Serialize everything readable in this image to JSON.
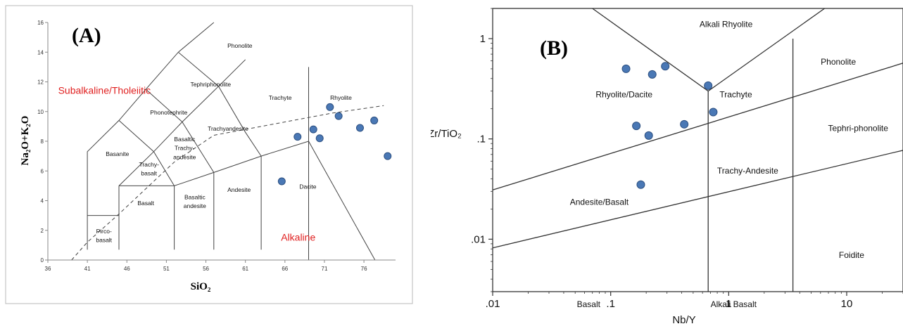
{
  "chart_data": [
    {
      "type": "scatter",
      "panel_label": "(A)",
      "xlabel": "SiO₂",
      "ylabel": "Na₂O+K₂O",
      "xlim": [
        36,
        80
      ],
      "ylim": [
        0,
        16
      ],
      "xticks": [
        "36",
        "41",
        "46",
        "51",
        "56",
        "61",
        "66",
        "71",
        "76"
      ],
      "yticks": [
        "0",
        "2",
        "4",
        "6",
        "8",
        "10",
        "12",
        "14",
        "16"
      ],
      "point_color": "#4a78b5",
      "annotation_color": "#e02020",
      "annotations": [
        {
          "text": "Subalkaline/Tholeiitic",
          "x": 37.3,
          "y": 11.2
        },
        {
          "text": "Alkaline",
          "x": 65.5,
          "y": 1.3
        }
      ],
      "field_labels": [
        {
          "text": "Phonolite",
          "x": 60.3,
          "y": 14.3
        },
        {
          "text": "Tephriphonolite",
          "x": 56.6,
          "y": 11.7
        },
        {
          "text": "Trachyte",
          "x": 65.4,
          "y": 10.8
        },
        {
          "text": "Rhyolite",
          "x": 73.1,
          "y": 10.8
        },
        {
          "text": "Phonotephrite",
          "x": 51.3,
          "y": 9.8
        },
        {
          "text": "Trachyandesite",
          "x": 58.8,
          "y": 8.7
        },
        {
          "text": "Basaltic",
          "x": 53.3,
          "y": 8.0
        },
        {
          "text": "Trachy-",
          "x": 53.3,
          "y": 7.4
        },
        {
          "text": "andesite",
          "x": 53.3,
          "y": 6.8
        },
        {
          "text": "Basanite",
          "x": 44.8,
          "y": 7.0
        },
        {
          "text": "Trachy-",
          "x": 48.8,
          "y": 6.3
        },
        {
          "text": "basalt",
          "x": 48.8,
          "y": 5.7
        },
        {
          "text": "Dacite",
          "x": 68.9,
          "y": 4.8
        },
        {
          "text": "Andesite",
          "x": 60.2,
          "y": 4.6
        },
        {
          "text": "Basaltic",
          "x": 54.6,
          "y": 4.1
        },
        {
          "text": "andesite",
          "x": 54.6,
          "y": 3.5
        },
        {
          "text": "Basalt",
          "x": 48.4,
          "y": 3.7
        },
        {
          "text": "Pirco-",
          "x": 43.1,
          "y": 1.8
        },
        {
          "text": "basalt",
          "x": 43.1,
          "y": 1.2
        }
      ],
      "x": [
        65.6,
        67.6,
        69.6,
        70.4,
        71.7,
        72.8,
        75.5,
        77.3,
        79.0
      ],
      "y": [
        5.3,
        8.3,
        8.8,
        8.2,
        10.3,
        9.7,
        8.9,
        9.4,
        7.0
      ]
    },
    {
      "type": "scatter",
      "panel_label": "(B)",
      "xlabel": "Nb/Y",
      "ylabel": "Zr/TiO₂",
      "xscale": "log",
      "yscale": "log",
      "xlim": [
        0.01,
        30
      ],
      "ylim": [
        0.003,
        2
      ],
      "xticks": [
        ".01",
        ".1",
        "1",
        "10"
      ],
      "yticks": [
        ".01",
        ".1",
        "1"
      ],
      "point_color": "#4a78b5",
      "field_labels": [
        {
          "text": "Alkali Rhyolite",
          "x": 0.95,
          "y": 1.3
        },
        {
          "text": "Phonolite",
          "x": 8.5,
          "y": 0.55
        },
        {
          "text": "Rhyolite/Dacite",
          "x": 0.13,
          "y": 0.26
        },
        {
          "text": "Trachyte",
          "x": 1.15,
          "y": 0.26
        },
        {
          "text": "Tephri-phonolite",
          "x": 12.5,
          "y": 0.12
        },
        {
          "text": "Trachy-Andesite",
          "x": 1.45,
          "y": 0.045
        },
        {
          "text": "Andesite/Basalt",
          "x": 0.08,
          "y": 0.022
        },
        {
          "text": "Foidite",
          "x": 11.0,
          "y": 0.0065
        },
        {
          "text": "Basalt",
          "x": 0.065,
          "y": 0.0021
        },
        {
          "text": "Alkali Basalt",
          "x": 1.1,
          "y": 0.0021
        }
      ],
      "x": [
        0.135,
        0.225,
        0.29,
        0.67,
        0.165,
        0.21,
        0.42,
        0.74,
        0.18
      ],
      "y": [
        0.5,
        0.44,
        0.53,
        0.34,
        0.135,
        0.108,
        0.14,
        0.185,
        0.035
      ]
    }
  ]
}
